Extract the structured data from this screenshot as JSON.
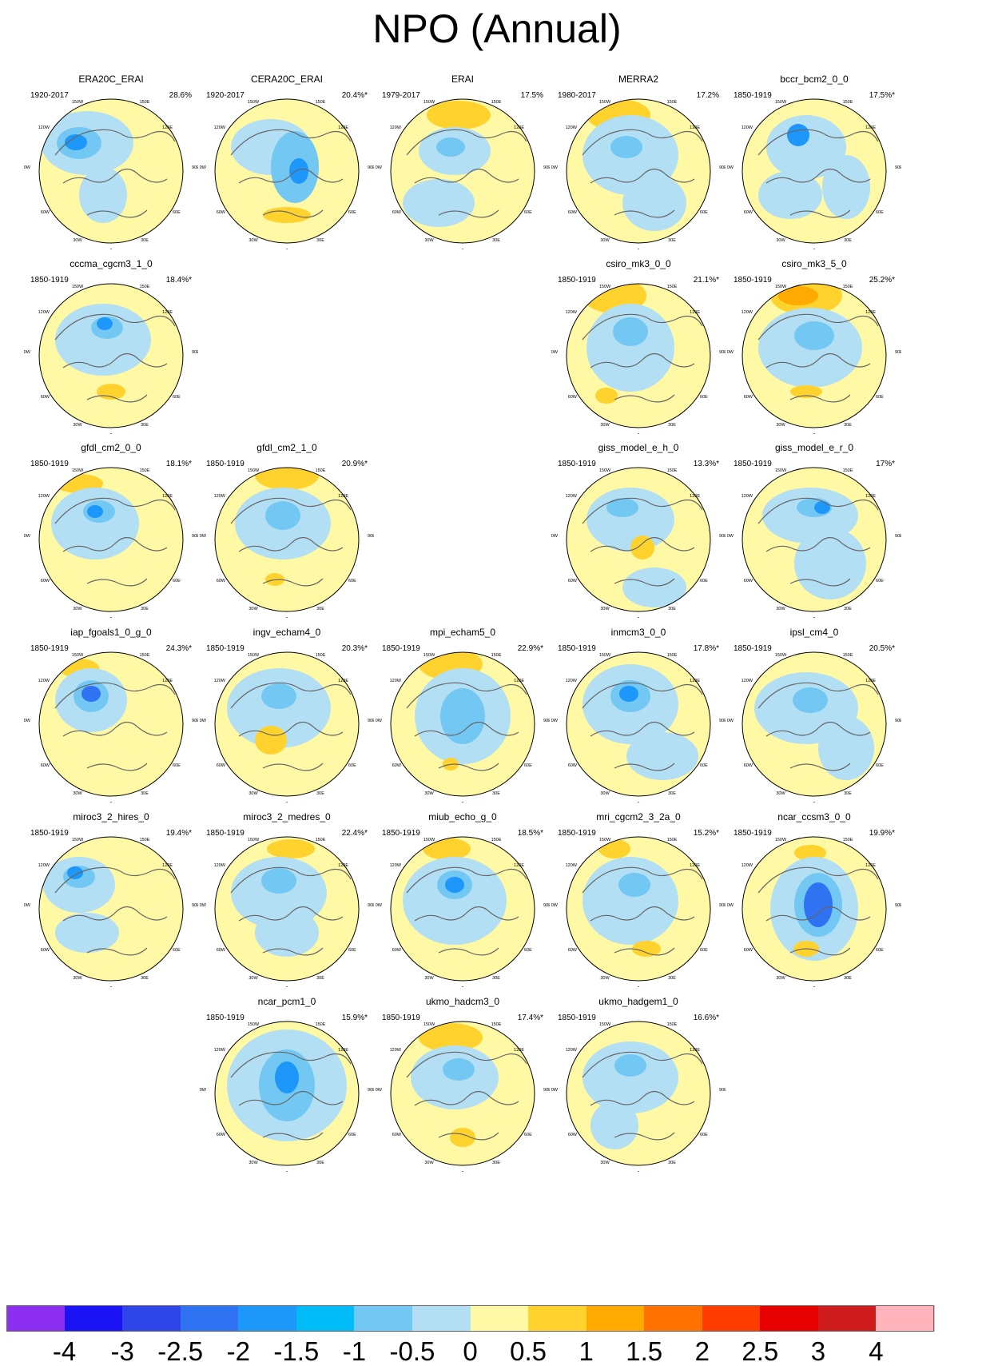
{
  "title": "NPO (Annual)",
  "panels": [
    {
      "name": "ERA20C_ERAI",
      "years": "1920-2017",
      "pct": "28.6%"
    },
    {
      "name": "CERA20C_ERAI",
      "years": "1920-2017",
      "pct": "20.4%*"
    },
    {
      "name": "ERAI",
      "years": "1979-2017",
      "pct": "17.5%"
    },
    {
      "name": "MERRA2",
      "years": "1980-2017",
      "pct": "17.2%"
    },
    {
      "name": "bccr_bcm2_0_0",
      "years": "1850-1919",
      "pct": "17.5%*"
    },
    {
      "name": "cccma_cgcm3_1_0",
      "years": "1850-1919",
      "pct": "18.4%*"
    },
    {
      "name": "csiro_mk3_0_0",
      "years": "1850-1919",
      "pct": "21.1%*"
    },
    {
      "name": "csiro_mk3_5_0",
      "years": "1850-1919",
      "pct": "25.2%*"
    },
    {
      "name": "gfdl_cm2_0_0",
      "years": "1850-1919",
      "pct": "18.1%*"
    },
    {
      "name": "gfdl_cm2_1_0",
      "years": "1850-1919",
      "pct": "20.9%*"
    },
    {
      "name": "giss_model_e_h_0",
      "years": "1850-1919",
      "pct": "13.3%*"
    },
    {
      "name": "giss_model_e_r_0",
      "years": "1850-1919",
      "pct": "17%*"
    },
    {
      "name": "iap_fgoals1_0_g_0",
      "years": "1850-1919",
      "pct": "24.3%*"
    },
    {
      "name": "ingv_echam4_0",
      "years": "1850-1919",
      "pct": "20.3%*"
    },
    {
      "name": "mpi_echam5_0",
      "years": "1850-1919",
      "pct": "22.9%*"
    },
    {
      "name": "inmcm3_0_0",
      "years": "1850-1919",
      "pct": "17.8%*"
    },
    {
      "name": "ipsl_cm4_0",
      "years": "1850-1919",
      "pct": "20.5%*"
    },
    {
      "name": "miroc3_2_hires_0",
      "years": "1850-1919",
      "pct": "19.4%*"
    },
    {
      "name": "miroc3_2_medres_0",
      "years": "1850-1919",
      "pct": "22.4%*"
    },
    {
      "name": "miub_echo_g_0",
      "years": "1850-1919",
      "pct": "18.5%*"
    },
    {
      "name": "mri_cgcm2_3_2a_0",
      "years": "1850-1919",
      "pct": "15.2%*"
    },
    {
      "name": "ncar_ccsm3_0_0",
      "years": "1850-1919",
      "pct": "19.9%*"
    },
    {
      "name": "ncar_pcm1_0",
      "years": "1850-1919",
      "pct": "15.9%*"
    },
    {
      "name": "ukmo_hadcm3_0",
      "years": "1850-1919",
      "pct": "17.4%*"
    },
    {
      "name": "ukmo_hadgem1_0",
      "years": "1850-1919",
      "pct": "16.6%*"
    }
  ],
  "lon_labels": [
    "180",
    "150E",
    "120E",
    "90E",
    "60E",
    "30E",
    "0",
    "30W",
    "60W",
    "90W",
    "120W",
    "150W"
  ],
  "colorbar": {
    "colors": [
      "#8c2ff0",
      "#1b14f5",
      "#2e45ea",
      "#2f73f2",
      "#1e97fb",
      "#00bdf8",
      "#72c8f3",
      "#b2dff3",
      "#fff8a4",
      "#ffd22d",
      "#ffaa00",
      "#ff7200",
      "#ff3c00",
      "#e60000",
      "#ce1c1c",
      "#ffb3ba"
    ],
    "labels": [
      "-4",
      "-3",
      "-2.5",
      "-2",
      "-1.5",
      "-1",
      "-0.5",
      "0",
      "0.5",
      "1",
      "1.5",
      "2",
      "2.5",
      "3",
      "4"
    ]
  }
}
